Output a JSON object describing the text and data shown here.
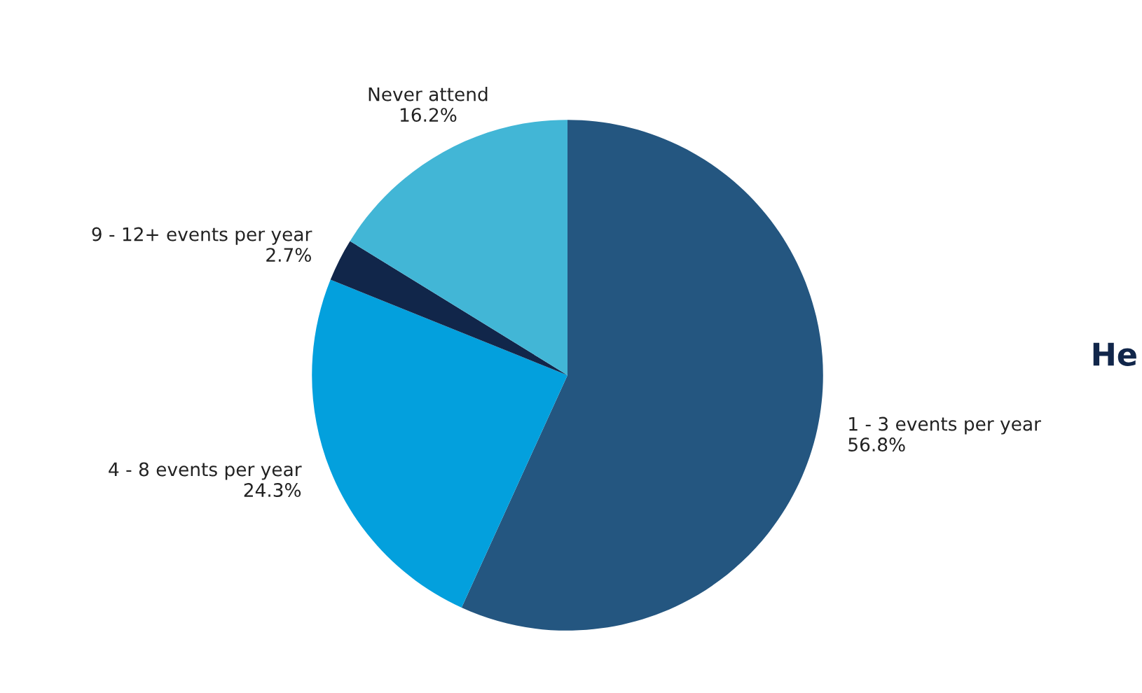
{
  "chart_data": {
    "type": "pie",
    "categories": [
      "1 - 3 events per year",
      "4 - 8 events per year",
      "9 - 12+ events per year",
      "Never attend"
    ],
    "values": [
      56.8,
      24.3,
      2.7,
      16.2
    ],
    "value_labels": [
      "56.8%",
      "24.3%",
      "2.7%",
      "16.2%"
    ],
    "data_labels": true,
    "colors": [
      "#245680",
      "#03a0dd",
      "#11264a",
      "#42b6d6"
    ],
    "annotations": [
      "He"
    ]
  }
}
